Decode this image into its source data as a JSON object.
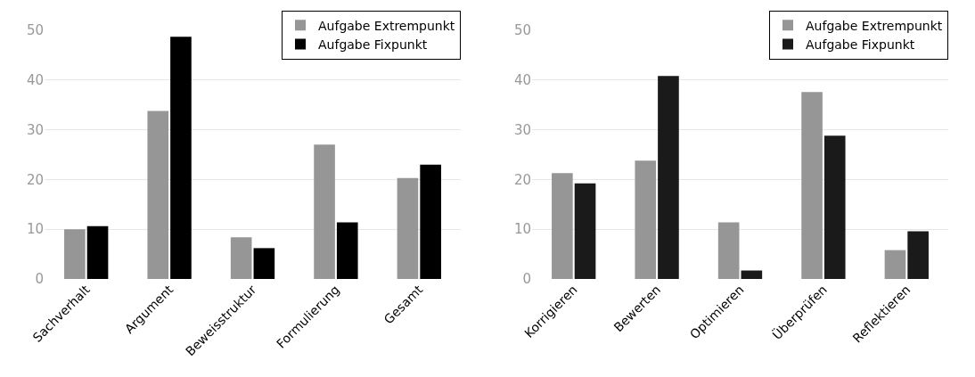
{
  "chart_data": [
    {
      "type": "bar",
      "categories": [
        "Sachverhalt",
        "Argument",
        "Beweisstruktur",
        "Formulierung",
        "Gesamt"
      ],
      "series": [
        {
          "name": "Aufgabe Extrempunkt",
          "color": "#969696",
          "values": [
            10,
            33.8,
            8.4,
            27,
            20.3
          ]
        },
        {
          "name": "Aufgabe Fixpunkt",
          "color": "#000000",
          "values": [
            10.6,
            48.7,
            6.2,
            11.4,
            23
          ]
        }
      ],
      "ylim": [
        0,
        50
      ],
      "yticks": [
        0,
        10,
        20,
        30,
        40,
        50
      ],
      "grid": "y",
      "legend": "top right"
    },
    {
      "type": "bar",
      "categories": [
        "Korrigieren",
        "Bewerten",
        "Optimieren",
        "Überprüfen",
        "Reflektieren"
      ],
      "series": [
        {
          "name": "Aufgabe Extrempunkt",
          "color": "#969696",
          "values": [
            21.3,
            23.8,
            11.4,
            37.6,
            5.8
          ]
        },
        {
          "name": "Aufgabe Fixpunkt",
          "color": "#1a1a1a",
          "values": [
            19.2,
            40.8,
            1.7,
            28.8,
            9.6
          ]
        }
      ],
      "ylim": [
        0,
        50
      ],
      "yticks": [
        0,
        10,
        20,
        30,
        40,
        50
      ],
      "grid": "y",
      "legend": "top right"
    }
  ]
}
